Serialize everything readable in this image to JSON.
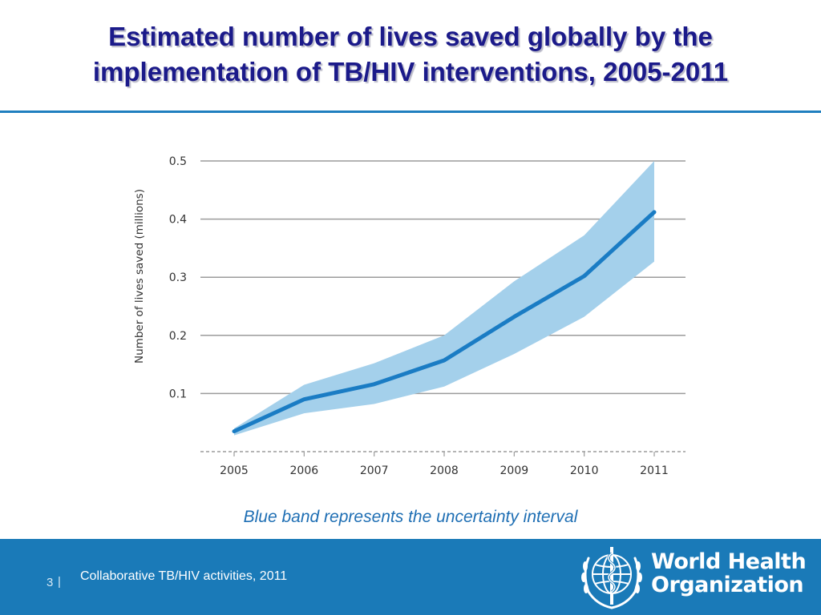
{
  "slide": {
    "title_line1": "Estimated number of lives saved globally by the",
    "title_line2": "implementation of TB/HIV interventions, 2005-2011",
    "caption": "Blue band represents the uncertainty interval"
  },
  "footer": {
    "page_number": "3",
    "separator": "|",
    "text": "Collaborative TB/HIV activities, 2011",
    "logo_line1": "World Health",
    "logo_line2": "Organization"
  },
  "colors": {
    "title": "#1b1a8a",
    "accent": "#1f7fbf",
    "line": "#1a7cc4",
    "band": "#a4d0eb",
    "footer_bg": "#1a7ab8"
  },
  "chart_data": {
    "type": "line",
    "x": [
      "2005",
      "2006",
      "2007",
      "2008",
      "2009",
      "2010",
      "2011"
    ],
    "series": [
      {
        "values": [
          0.035,
          0.09,
          0.116,
          0.157,
          0.232,
          0.302,
          0.412
        ]
      }
    ],
    "uncertainty_band": {
      "lower": [
        0.028,
        0.066,
        0.082,
        0.112,
        0.168,
        0.232,
        0.327
      ],
      "upper": [
        0.04,
        0.115,
        0.152,
        0.2,
        0.293,
        0.372,
        0.5
      ]
    },
    "ylabel": "Number of lives saved (millions)",
    "xlabel": "",
    "ylim": [
      0,
      0.5
    ],
    "yticks": [
      "0.1",
      "0.2",
      "0.3",
      "0.4",
      "0.5"
    ],
    "grid": true
  }
}
